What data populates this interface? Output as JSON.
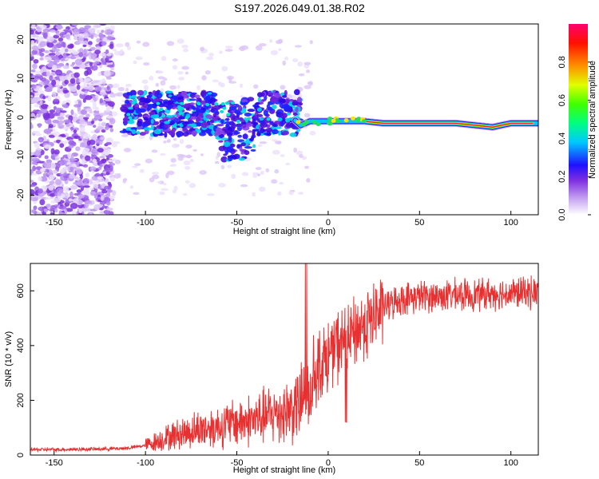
{
  "title": "S197.2026.049.01.38.R02",
  "chart_data": [
    {
      "type": "heatmap",
      "name": "spectrogram",
      "xlabel": "Height of straight line (km)",
      "ylabel": "Frequency (Hz)",
      "xlim": [
        -163,
        115
      ],
      "ylim": [
        -25,
        24
      ],
      "xticks": [
        "-150",
        "-100",
        "-50",
        "0",
        "50",
        "100"
      ],
      "yticks": [
        "20",
        "10",
        "0",
        "-10",
        "-20"
      ],
      "colorbar": {
        "label": "Normalized spectral amplitude",
        "ticks": [
          "0.0",
          "0.2",
          "0.4",
          "0.6",
          "0.8"
        ],
        "range": [
          0,
          1
        ],
        "colors": [
          "#ffffff",
          "#8a2be2",
          "#0000ff",
          "#00e5ff",
          "#00ff00",
          "#ffff00",
          "#ff8000",
          "#ff0000",
          "#ff0080"
        ]
      },
      "signal_track": {
        "x": [
          -110,
          -80,
          -50,
          -30,
          -20,
          -15,
          -10,
          -5,
          0,
          10,
          20,
          30,
          40,
          50,
          60,
          70,
          80,
          90,
          95,
          100,
          110,
          115
        ],
        "y": [
          1,
          2,
          0,
          -1,
          0,
          -2,
          -1,
          -1,
          -1,
          -1,
          -1,
          -1.5,
          -1.5,
          -1.5,
          -1.5,
          -1.5,
          -2,
          -2.5,
          -2,
          -1.5,
          -1.5,
          -1.5
        ]
      }
    },
    {
      "type": "line",
      "name": "snr",
      "xlabel": "Height of straight line (km)",
      "ylabel": "SNR (10 * v/v)",
      "xlim": [
        -163,
        115
      ],
      "ylim": [
        0,
        700
      ],
      "xticks": [
        "-150",
        "-100",
        "-50",
        "0",
        "50",
        "100"
      ],
      "yticks": [
        "0",
        "200",
        "400",
        "600"
      ],
      "color": "#e83030",
      "x": [
        -163,
        -150,
        -125,
        -110,
        -100,
        -90,
        -80,
        -70,
        -60,
        -50,
        -40,
        -30,
        -20,
        -15,
        -12,
        -10,
        -8,
        -5,
        0,
        5,
        10,
        15,
        20,
        25,
        30,
        40,
        50,
        60,
        70,
        80,
        90,
        100,
        110,
        115
      ],
      "y": [
        20,
        20,
        22,
        25,
        35,
        60,
        80,
        95,
        105,
        120,
        130,
        150,
        170,
        190,
        250,
        220,
        300,
        330,
        360,
        400,
        420,
        450,
        480,
        500,
        540,
        570,
        580,
        580,
        585,
        585,
        590,
        590,
        595,
        595
      ]
    }
  ]
}
